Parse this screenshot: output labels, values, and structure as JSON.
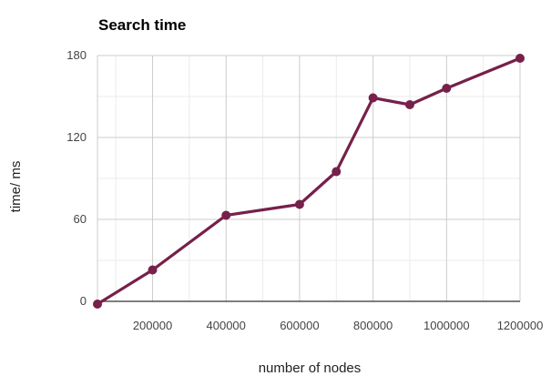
{
  "chart_data": {
    "type": "line",
    "title": "Search time",
    "xlabel": "number of nodes",
    "ylabel": "time/ ms",
    "x": [
      50000,
      200000,
      400000,
      600000,
      700000,
      800000,
      900000,
      1000000,
      1200000
    ],
    "series": [
      {
        "values": [
          -2,
          23,
          63,
          71,
          95,
          149,
          144,
          156,
          178
        ]
      }
    ],
    "xlim": [
      50000,
      1200000
    ],
    "ylim": [
      0,
      180
    ],
    "x_ticks": [
      200000,
      400000,
      600000,
      800000,
      1000000,
      1200000
    ],
    "x_tick_labels": [
      "200000",
      "400000",
      "600000",
      "800000",
      "1000000",
      "1200000"
    ],
    "y_ticks": [
      0,
      60,
      120,
      180
    ],
    "y_tick_labels": [
      "0",
      "60",
      "120",
      "180"
    ],
    "grid": true,
    "legend": "none",
    "colors": {
      "line": "#76204a",
      "marker": "#76204a"
    }
  }
}
